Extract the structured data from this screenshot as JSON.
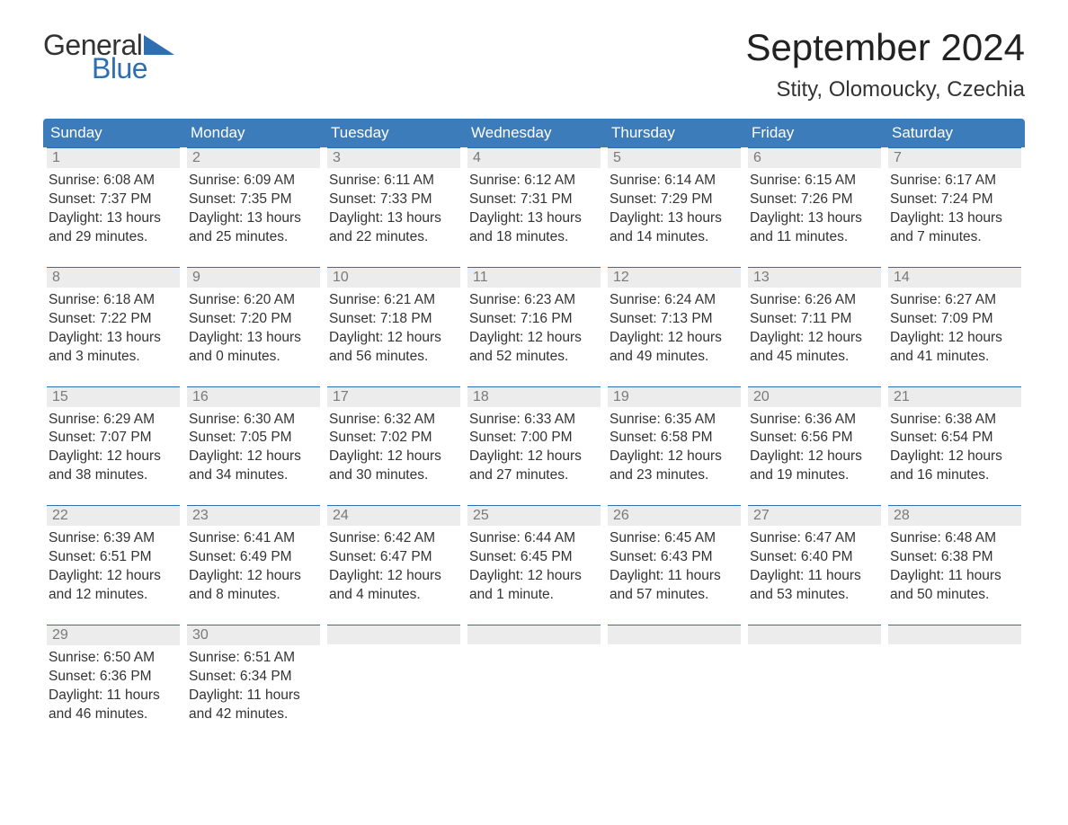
{
  "brand": {
    "word1": "General",
    "word2": "Blue",
    "mark_color": "#2f6fb0"
  },
  "title": {
    "month_year": "September 2024",
    "location": "Stity, Olomoucky, Czechia"
  },
  "colors": {
    "header_bg": "#3d7cba",
    "header_text": "#ffffff",
    "daynum_bg": "#ececec",
    "daynum_border": "#2f6fb0",
    "daynum_text": "#7a7a7a",
    "body_text": "#333333",
    "page_bg": "#ffffff"
  },
  "weekdays": [
    "Sunday",
    "Monday",
    "Tuesday",
    "Wednesday",
    "Thursday",
    "Friday",
    "Saturday"
  ],
  "weeks": [
    [
      {
        "n": "1",
        "sunrise": "Sunrise: 6:08 AM",
        "sunset": "Sunset: 7:37 PM",
        "d1": "Daylight: 13 hours",
        "d2": "and 29 minutes."
      },
      {
        "n": "2",
        "sunrise": "Sunrise: 6:09 AM",
        "sunset": "Sunset: 7:35 PM",
        "d1": "Daylight: 13 hours",
        "d2": "and 25 minutes."
      },
      {
        "n": "3",
        "sunrise": "Sunrise: 6:11 AM",
        "sunset": "Sunset: 7:33 PM",
        "d1": "Daylight: 13 hours",
        "d2": "and 22 minutes."
      },
      {
        "n": "4",
        "sunrise": "Sunrise: 6:12 AM",
        "sunset": "Sunset: 7:31 PM",
        "d1": "Daylight: 13 hours",
        "d2": "and 18 minutes."
      },
      {
        "n": "5",
        "sunrise": "Sunrise: 6:14 AM",
        "sunset": "Sunset: 7:29 PM",
        "d1": "Daylight: 13 hours",
        "d2": "and 14 minutes."
      },
      {
        "n": "6",
        "sunrise": "Sunrise: 6:15 AM",
        "sunset": "Sunset: 7:26 PM",
        "d1": "Daylight: 13 hours",
        "d2": "and 11 minutes."
      },
      {
        "n": "7",
        "sunrise": "Sunrise: 6:17 AM",
        "sunset": "Sunset: 7:24 PM",
        "d1": "Daylight: 13 hours",
        "d2": "and 7 minutes."
      }
    ],
    [
      {
        "n": "8",
        "sunrise": "Sunrise: 6:18 AM",
        "sunset": "Sunset: 7:22 PM",
        "d1": "Daylight: 13 hours",
        "d2": "and 3 minutes."
      },
      {
        "n": "9",
        "sunrise": "Sunrise: 6:20 AM",
        "sunset": "Sunset: 7:20 PM",
        "d1": "Daylight: 13 hours",
        "d2": "and 0 minutes."
      },
      {
        "n": "10",
        "sunrise": "Sunrise: 6:21 AM",
        "sunset": "Sunset: 7:18 PM",
        "d1": "Daylight: 12 hours",
        "d2": "and 56 minutes."
      },
      {
        "n": "11",
        "sunrise": "Sunrise: 6:23 AM",
        "sunset": "Sunset: 7:16 PM",
        "d1": "Daylight: 12 hours",
        "d2": "and 52 minutes."
      },
      {
        "n": "12",
        "sunrise": "Sunrise: 6:24 AM",
        "sunset": "Sunset: 7:13 PM",
        "d1": "Daylight: 12 hours",
        "d2": "and 49 minutes."
      },
      {
        "n": "13",
        "sunrise": "Sunrise: 6:26 AM",
        "sunset": "Sunset: 7:11 PM",
        "d1": "Daylight: 12 hours",
        "d2": "and 45 minutes."
      },
      {
        "n": "14",
        "sunrise": "Sunrise: 6:27 AM",
        "sunset": "Sunset: 7:09 PM",
        "d1": "Daylight: 12 hours",
        "d2": "and 41 minutes."
      }
    ],
    [
      {
        "n": "15",
        "sunrise": "Sunrise: 6:29 AM",
        "sunset": "Sunset: 7:07 PM",
        "d1": "Daylight: 12 hours",
        "d2": "and 38 minutes."
      },
      {
        "n": "16",
        "sunrise": "Sunrise: 6:30 AM",
        "sunset": "Sunset: 7:05 PM",
        "d1": "Daylight: 12 hours",
        "d2": "and 34 minutes."
      },
      {
        "n": "17",
        "sunrise": "Sunrise: 6:32 AM",
        "sunset": "Sunset: 7:02 PM",
        "d1": "Daylight: 12 hours",
        "d2": "and 30 minutes."
      },
      {
        "n": "18",
        "sunrise": "Sunrise: 6:33 AM",
        "sunset": "Sunset: 7:00 PM",
        "d1": "Daylight: 12 hours",
        "d2": "and 27 minutes."
      },
      {
        "n": "19",
        "sunrise": "Sunrise: 6:35 AM",
        "sunset": "Sunset: 6:58 PM",
        "d1": "Daylight: 12 hours",
        "d2": "and 23 minutes."
      },
      {
        "n": "20",
        "sunrise": "Sunrise: 6:36 AM",
        "sunset": "Sunset: 6:56 PM",
        "d1": "Daylight: 12 hours",
        "d2": "and 19 minutes."
      },
      {
        "n": "21",
        "sunrise": "Sunrise: 6:38 AM",
        "sunset": "Sunset: 6:54 PM",
        "d1": "Daylight: 12 hours",
        "d2": "and 16 minutes."
      }
    ],
    [
      {
        "n": "22",
        "sunrise": "Sunrise: 6:39 AM",
        "sunset": "Sunset: 6:51 PM",
        "d1": "Daylight: 12 hours",
        "d2": "and 12 minutes."
      },
      {
        "n": "23",
        "sunrise": "Sunrise: 6:41 AM",
        "sunset": "Sunset: 6:49 PM",
        "d1": "Daylight: 12 hours",
        "d2": "and 8 minutes."
      },
      {
        "n": "24",
        "sunrise": "Sunrise: 6:42 AM",
        "sunset": "Sunset: 6:47 PM",
        "d1": "Daylight: 12 hours",
        "d2": "and 4 minutes."
      },
      {
        "n": "25",
        "sunrise": "Sunrise: 6:44 AM",
        "sunset": "Sunset: 6:45 PM",
        "d1": "Daylight: 12 hours",
        "d2": "and 1 minute."
      },
      {
        "n": "26",
        "sunrise": "Sunrise: 6:45 AM",
        "sunset": "Sunset: 6:43 PM",
        "d1": "Daylight: 11 hours",
        "d2": "and 57 minutes."
      },
      {
        "n": "27",
        "sunrise": "Sunrise: 6:47 AM",
        "sunset": "Sunset: 6:40 PM",
        "d1": "Daylight: 11 hours",
        "d2": "and 53 minutes."
      },
      {
        "n": "28",
        "sunrise": "Sunrise: 6:48 AM",
        "sunset": "Sunset: 6:38 PM",
        "d1": "Daylight: 11 hours",
        "d2": "and 50 minutes."
      }
    ],
    [
      {
        "n": "29",
        "sunrise": "Sunrise: 6:50 AM",
        "sunset": "Sunset: 6:36 PM",
        "d1": "Daylight: 11 hours",
        "d2": "and 46 minutes."
      },
      {
        "n": "30",
        "sunrise": "Sunrise: 6:51 AM",
        "sunset": "Sunset: 6:34 PM",
        "d1": "Daylight: 11 hours",
        "d2": "and 42 minutes."
      },
      {
        "empty": true
      },
      {
        "empty": true
      },
      {
        "empty": true
      },
      {
        "empty": true
      },
      {
        "empty": true
      }
    ]
  ]
}
